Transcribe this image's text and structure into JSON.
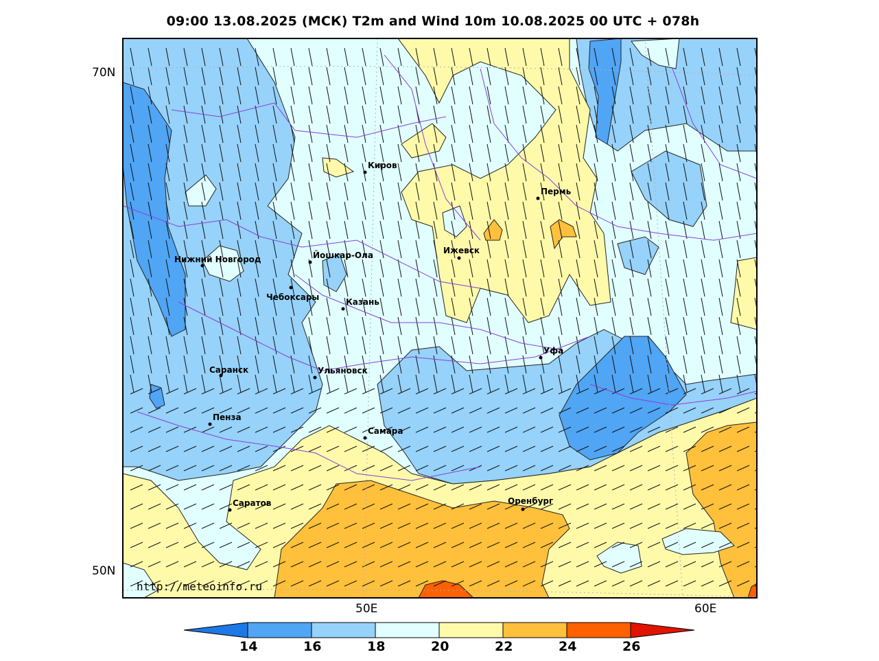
{
  "title": "09:00 13.08.2025 (МСК) T2m and Wind 10m 10.08.2025 00 UTC + 078h",
  "credit": "http://meteoinfo.ru",
  "lat_labels": [
    "70N",
    "50N"
  ],
  "lon_labels": [
    "50E",
    "60E"
  ],
  "colorbar": {
    "ticks": [
      "14",
      "16",
      "18",
      "20",
      "22",
      "24",
      "26"
    ],
    "colors": [
      "#1e78e6",
      "#50a5f5",
      "#96d2fa",
      "#e1ffff",
      "#fffaaa",
      "#ffc03c",
      "#ff6000",
      "#e11400"
    ]
  },
  "cities": [
    {
      "name": "Киров"
    },
    {
      "name": "Пермь"
    },
    {
      "name": "Ижевск"
    },
    {
      "name": "Нижний Новгород"
    },
    {
      "name": "Йошкар-Ола"
    },
    {
      "name": "Чебоксары"
    },
    {
      "name": "Казань"
    },
    {
      "name": "Уфа"
    },
    {
      "name": "Саранск"
    },
    {
      "name": "Ульяновск"
    },
    {
      "name": "Пенза"
    },
    {
      "name": "Самара"
    },
    {
      "name": "Оренбург"
    },
    {
      "name": "Саратов"
    }
  ]
}
